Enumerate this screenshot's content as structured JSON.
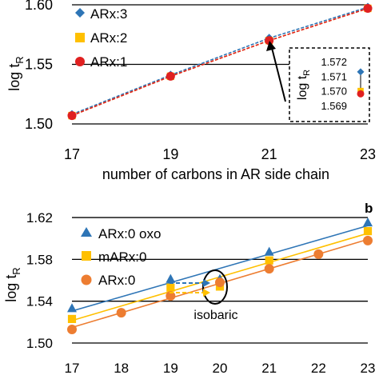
{
  "chart_data": [
    {
      "type": "line",
      "panel_label": "",
      "xlabel": "number of carbons in AR side chain",
      "ylabel_main": "log t",
      "ylabel_sub": "R",
      "xlim": [
        17,
        23
      ],
      "ylim": [
        1.5,
        1.6
      ],
      "xticks": [
        "17",
        "19",
        "21",
        "23"
      ],
      "xtick_values": [
        17,
        19,
        21,
        23
      ],
      "yticks": [
        "1.50",
        "1.55",
        "1.60"
      ],
      "ytick_values": [
        1.5,
        1.55,
        1.6
      ],
      "grid": "horizontal",
      "legend_position": "top-left",
      "series": [
        {
          "name": "ARx:3",
          "marker": "diamond",
          "color": "#2e75b6",
          "line": "dashed",
          "x": [
            17,
            19,
            21,
            23
          ],
          "y": [
            1.508,
            1.541,
            1.572,
            1.598
          ]
        },
        {
          "name": "ARx:2",
          "marker": "square",
          "color": "#ffc000",
          "line": "dashed",
          "x": [
            17,
            19,
            21,
            23
          ],
          "y": [
            1.507,
            1.54,
            1.57,
            1.597
          ]
        },
        {
          "name": "ARx:1",
          "marker": "circle",
          "color": "#e02020",
          "line": "dashed",
          "x": [
            17,
            19,
            21,
            23
          ],
          "y": [
            1.507,
            1.54,
            1.57,
            1.597
          ]
        }
      ],
      "inset": {
        "ylabel_main": "log t",
        "ylabel_sub": "R",
        "yticks": [
          "1.572",
          "1.571",
          "1.570",
          "1.569"
        ],
        "ytick_values": [
          1.572,
          1.571,
          1.57,
          1.569
        ],
        "points": [
          {
            "series": "ARx:3",
            "y": 1.5713
          },
          {
            "series": "ARx:2",
            "y": 1.57
          },
          {
            "series": "ARx:1",
            "y": 1.5698
          }
        ]
      }
    },
    {
      "type": "line",
      "panel_label": "b",
      "xlabel": "",
      "ylabel_main": "log t",
      "ylabel_sub": "R",
      "xlim": [
        17,
        23
      ],
      "ylim": [
        1.5,
        1.63
      ],
      "xticks": [
        "17",
        "18",
        "19",
        "20",
        "21",
        "22",
        "23"
      ],
      "xtick_values": [
        17,
        18,
        19,
        20,
        21,
        22,
        23
      ],
      "yticks": [
        "1.50",
        "1.54",
        "1.58",
        "1.62"
      ],
      "ytick_values": [
        1.5,
        1.54,
        1.58,
        1.62
      ],
      "grid": "horizontal",
      "legend_position": "top-left",
      "annotation": "isobaric",
      "series": [
        {
          "name": "ARx:0 oxo",
          "marker": "triangle",
          "color": "#2e75b6",
          "x": [
            17,
            19,
            20,
            21,
            23
          ],
          "y": [
            1.533,
            1.561,
            1.561,
            1.587,
            1.615
          ]
        },
        {
          "name": "mARx:0",
          "marker": "square",
          "color": "#ffc000",
          "x": [
            17,
            19,
            20,
            21,
            23
          ],
          "y": [
            1.523,
            1.553,
            1.554,
            1.579,
            1.607
          ]
        },
        {
          "name": "ARx:0",
          "marker": "circle",
          "color": "#ed7d31",
          "x": [
            17,
            18,
            19,
            20,
            21,
            22,
            23
          ],
          "y": [
            1.513,
            1.529,
            1.545,
            1.558,
            1.571,
            1.585,
            1.598
          ]
        }
      ]
    }
  ]
}
